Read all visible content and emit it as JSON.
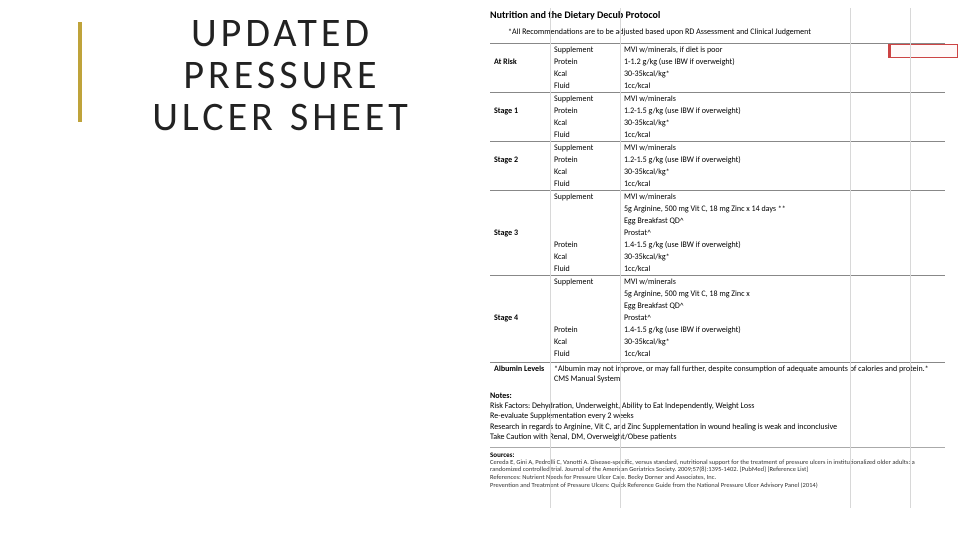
{
  "colors": {
    "accent": "#bfa33a",
    "text": "#222222",
    "grid": "#d8d8d8",
    "commentBorder": "#c44"
  },
  "title": {
    "line1": "UPDATED",
    "line2": "PRESSURE",
    "line3": "ULCER SHEET",
    "fontsize": 40,
    "letter_spacing": 4
  },
  "protocol": {
    "header": "Nutrition and the Dietary Decub Protocol",
    "disclaimer": "*All Recommendations are to be adjusted based upon RD Assessment and Clinical Judgement",
    "stages": [
      {
        "name": "At Risk",
        "rows": [
          {
            "param": "Supplement",
            "value": "MVI w/minerals, if diet is poor"
          },
          {
            "param": "Protein",
            "value": "1-1.2 g/kg (use IBW if overweight)"
          },
          {
            "param": "Kcal",
            "value": "30-35kcal/kg*"
          },
          {
            "param": "Fluid",
            "value": "1cc/kcal"
          }
        ]
      },
      {
        "name": "Stage 1",
        "rows": [
          {
            "param": "Supplement",
            "value": "MVI w/minerals"
          },
          {
            "param": "Protein",
            "value": "1.2-1.5 g/kg (use IBW if overweight)"
          },
          {
            "param": "Kcal",
            "value": "30-35kcal/kg*"
          },
          {
            "param": "Fluid",
            "value": "1cc/kcal"
          }
        ]
      },
      {
        "name": "Stage 2",
        "rows": [
          {
            "param": "Supplement",
            "value": "MVI w/minerals"
          },
          {
            "param": "Protein",
            "value": "1.2-1.5 g/kg (use IBW if overweight)"
          },
          {
            "param": "Kcal",
            "value": "30-35kcal/kg*"
          },
          {
            "param": "Fluid",
            "value": "1cc/kcal"
          }
        ]
      },
      {
        "name": "Stage 3",
        "rows": [
          {
            "param": "Supplement",
            "value": "MVI w/minerals"
          },
          {
            "param": "",
            "value": "5g Arginine, 500 mg Vit C, 18 mg Zinc x 14 days **"
          },
          {
            "param": "",
            "value": "Egg Breakfast QD^"
          },
          {
            "param": "",
            "value": "Prostat^"
          },
          {
            "param": "Protein",
            "value": "1.4-1.5 g/kg (use IBW if overweight)"
          },
          {
            "param": "Kcal",
            "value": "30-35kcal/kg*"
          },
          {
            "param": "Fluid",
            "value": "1cc/kcal"
          }
        ]
      },
      {
        "name": "Stage 4",
        "rows": [
          {
            "param": "Supplement",
            "value": "MVI w/minerals"
          },
          {
            "param": "",
            "value": "5g Arginine, 500 mg Vit C, 18 mg Zinc x"
          },
          {
            "param": "",
            "value": "Egg Breakfast QD^"
          },
          {
            "param": "",
            "value": "Prostat^"
          },
          {
            "param": "Protein",
            "value": "1.4-1.5 g/kg (use IBW if overweight)"
          },
          {
            "param": "Kcal",
            "value": "30-35kcal/kg*"
          },
          {
            "param": "Fluid",
            "value": "1cc/kcal"
          }
        ]
      }
    ],
    "albumin": {
      "label": "Albumin Levels",
      "text": "*Albumin may not improve, or may fall further, despite consumption of adequate amounts of calories and protein.* CMS Manual System"
    },
    "notes_header": "Notes:",
    "notes": [
      "Risk Factors:    Dehydration, Underweight, Ability to Eat Independently, Weight Loss",
      "Re-evaluate Supplementation every 2 weeks",
      "Research in regards to Arginine, Vit C, and Zinc Supplementation in wound healing is weak and inconclusive",
      "Take Caution with Renal, DM, Overweight/Obese patients"
    ],
    "sources_header": "Sources:",
    "sources": [
      "Cereda E, Gini A, Pedrolli C, Vanotti A. Disease-specific, versus standard, nutritional support for the treatment of pressure ulcers in institutionalized older adults: a randomized controlled trial. Journal of the American Geriatrics Society. 2009;57(8):1395-1402. [PubMed] [Reference List]",
      "References: Nutrient Needs for Pressure Ulcer Care. Becky Dorner and Associates, Inc.",
      "Prevention and Treatment of Pressure Ulcers: Quick Reference Guide from the National Pressure Ulcer Advisory Panel (2014)"
    ]
  }
}
